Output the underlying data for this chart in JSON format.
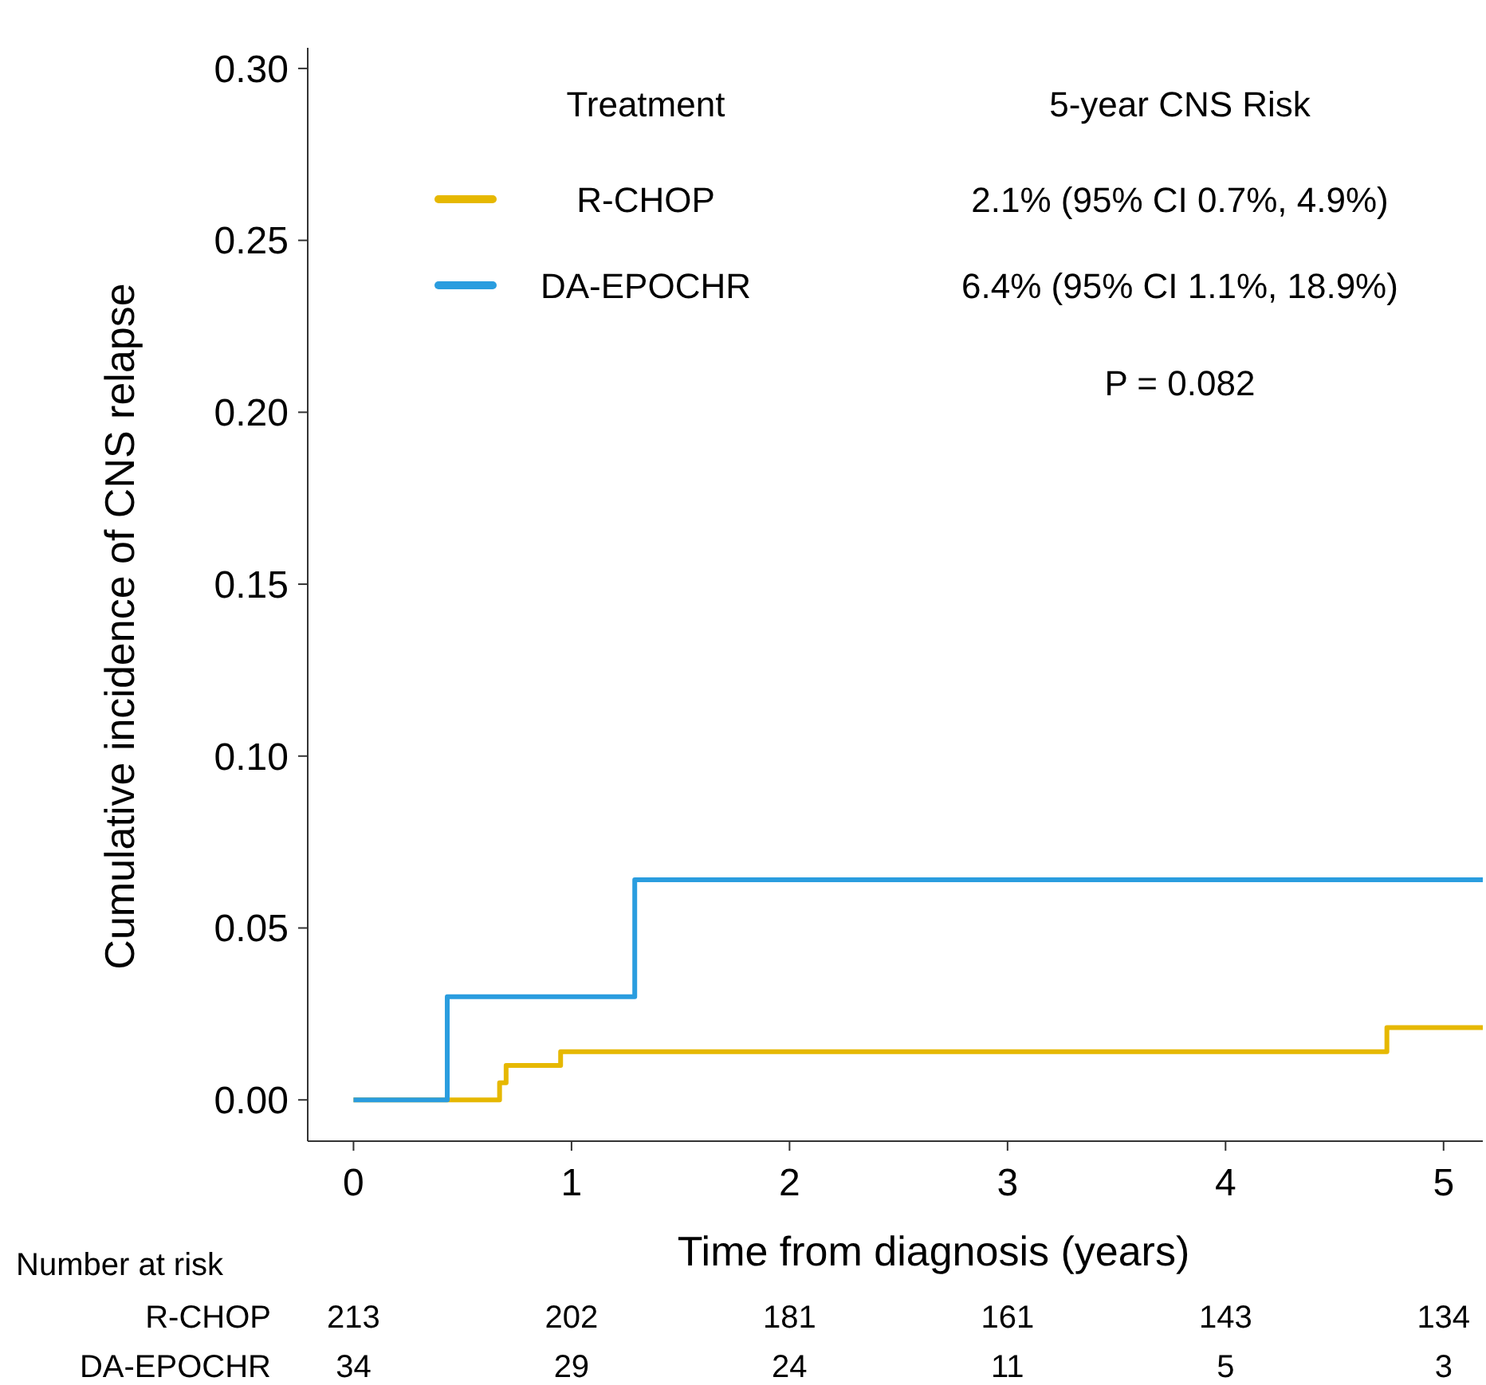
{
  "chart_data": {
    "type": "step",
    "xlabel": "Time from diagnosis (years)",
    "ylabel": "Cumulative incidence of CNS relapse",
    "legend_title": "Treatment",
    "legend": "top",
    "xlim": [
      -0.21,
      5.18
    ],
    "ylim": [
      -0.012,
      0.306
    ],
    "xticks": [
      0,
      1,
      2,
      3,
      4,
      5
    ],
    "yticks": [
      {
        "value": 0,
        "label": "0.00"
      },
      {
        "value": 0.05,
        "label": "0.05"
      },
      {
        "value": 0.1,
        "label": "0.10"
      },
      {
        "value": 0.15,
        "label": "0.15"
      },
      {
        "value": 0.2,
        "label": "0.20"
      },
      {
        "value": 0.25,
        "label": "0.25"
      },
      {
        "value": 0.3,
        "label": "0.30"
      }
    ],
    "series": [
      {
        "name": "R-CHOP",
        "color": "#e6b800",
        "x": [
          0,
          0.67,
          0.7,
          0.95,
          4.74,
          5.18
        ],
        "values": [
          0,
          0.005,
          0.01,
          0.014,
          0.021,
          0.021
        ]
      },
      {
        "name": "DA-EPOCHR",
        "color": "#2a9ddf",
        "x": [
          0,
          0.43,
          1.29,
          5.18
        ],
        "values": [
          0,
          0.03,
          0.064,
          0.064
        ]
      }
    ],
    "annotations": [
      "5-year CNS Risk",
      "2.1% (95% CI 0.7%, 4.9%)",
      "6.4% (95% CI 1.1%, 18.9%)",
      "P = 0.082",
      "Number at risk",
      "213 202 181 161 143 134",
      "34 29 24 11 5 3"
    ]
  }
}
